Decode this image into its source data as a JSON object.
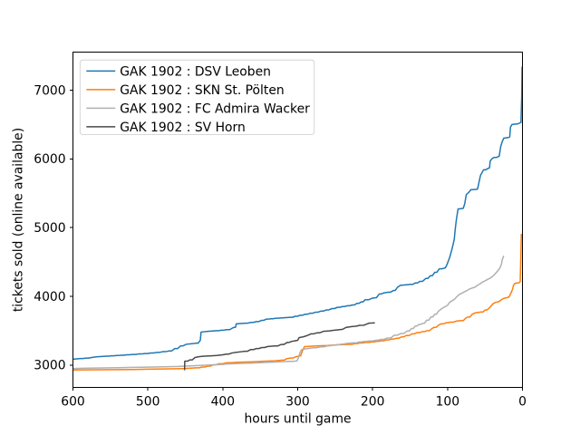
{
  "figure": {
    "background": "#ffffff"
  },
  "chart_data": {
    "type": "line",
    "xlabel": "hours until game",
    "ylabel": "tickets sold (online available)",
    "x_ticks": [
      600,
      500,
      400,
      300,
      200,
      100,
      0
    ],
    "y_ticks": [
      3000,
      4000,
      5000,
      6000,
      7000
    ],
    "xlim": [
      600,
      0
    ],
    "ylim": [
      2675,
      7553
    ],
    "x_axis_inverted": true,
    "grid": false,
    "legend": {
      "position": "upper left",
      "border_color": "#cccccc",
      "background": "#ffffff"
    },
    "axis_color": "#000000",
    "series": [
      {
        "name": "GAK 1902 : DSV Leoben",
        "color": "#1f77b4",
        "x": [
          600,
          590,
          586.6,
          582.5,
          579.1,
          575.0,
          569,
          555,
          552.1,
          548.7,
          545.8,
          542.3,
          539.5,
          536.0,
          532.4,
          528.0,
          524.4,
          520.0,
          516.4,
          512.0,
          508.4,
          504.0,
          500.4,
          496.0,
          492.4,
          488.0,
          484.4,
          480.0,
          476.4,
          472.0,
          468.4,
          464.0,
          460.4,
          456.0,
          452.9,
          449.0,
          440,
          435,
          432.8,
          430.0,
          429,
          420,
          408,
          405.1,
          401.5,
          398.6,
          395.0,
          390.9,
          386.0,
          383,
          382,
          370,
          366.6,
          362.5,
          359.1,
          355.0,
          352.1,
          348.5,
          345.6,
          342.0,
          339.3,
          336.0,
          333.3,
          330.0,
          322,
          310,
          307.0,
          303.3,
          300.3,
          296.7,
          293.7,
          290.0,
          286.9,
          283.0,
          279.9,
          276.0,
          272.9,
          269.0,
          265.7,
          261.7,
          258.4,
          254.3,
          251.0,
          247.0,
          244.0,
          240.3,
          237.3,
          233.7,
          230.7,
          227.0,
          224.3,
          221.0,
          218.3,
          215.0,
          212.8,
          210.0,
          205.5,
          200.0,
          195,
          191,
          188.3,
          185.0,
          180,
          176.4,
          172.0,
          169.8,
          167.0,
          163,
          155,
          149,
          146.3,
          143.0,
          140.3,
          137.0,
          133.4,
          129.0,
          126.3,
          123.0,
          120.3,
          117.0,
          114.3,
          111.0,
          107.4,
          103.0,
          101,
          97,
          94,
          91,
          90,
          88.5,
          88,
          86,
          79,
          77,
          75,
          71,
          69,
          62,
          60,
          56,
          52,
          49.3,
          46.0,
          44,
          43,
          40,
          38,
          34.9,
          31.0,
          29,
          27,
          25,
          19,
          17,
          16,
          14,
          6,
          2,
          1,
          0.5
        ],
        "y": [
          3085,
          3095,
          3095,
          3102,
          3102,
          3110,
          3120,
          3130,
          3130,
          3134,
          3134,
          3139,
          3139,
          3143,
          3143,
          3149,
          3149,
          3155,
          3155,
          3162,
          3162,
          3168,
          3168,
          3176,
          3176,
          3185,
          3185,
          3195,
          3195,
          3205,
          3205,
          3240,
          3240,
          3280,
          3280,
          3302,
          3312,
          3320,
          3320,
          3362,
          3480,
          3490,
          3500,
          3500,
          3508,
          3508,
          3515,
          3515,
          3545,
          3550,
          3600,
          3610,
          3610,
          3621,
          3621,
          3632,
          3632,
          3650,
          3650,
          3668,
          3668,
          3674,
          3674,
          3680,
          3685,
          3695,
          3695,
          3710,
          3710,
          3725,
          3725,
          3740,
          3740,
          3755,
          3755,
          3770,
          3770,
          3785,
          3785,
          3803,
          3803,
          3822,
          3822,
          3840,
          3840,
          3852,
          3852,
          3863,
          3863,
          3875,
          3875,
          3898,
          3898,
          3920,
          3920,
          3950,
          3950,
          3975,
          3980,
          4035,
          4035,
          4050,
          4060,
          4060,
          4085,
          4085,
          4130,
          4160,
          4168,
          4175,
          4175,
          4195,
          4195,
          4218,
          4218,
          4260,
          4260,
          4300,
          4300,
          4350,
          4350,
          4400,
          4400,
          4415,
          4455,
          4570,
          4690,
          4830,
          4950,
          5090,
          5130,
          5270,
          5280,
          5350,
          5480,
          5520,
          5550,
          5555,
          5560,
          5760,
          5840,
          5840,
          5860,
          5870,
          5970,
          6010,
          6020,
          6020,
          6040,
          6180,
          6250,
          6300,
          6310,
          6320,
          6460,
          6500,
          6510,
          6530,
          6900,
          7340
        ]
      },
      {
        "name": "GAK 1902 : SKN St. Pölten",
        "color": "#ff7f0e",
        "x": [
          600,
          580,
          560,
          540,
          520,
          500,
          480,
          460,
          450,
          435,
          431.6,
          427.5,
          424.1,
          420.0,
          416.4,
          412.0,
          408.9,
          405.0,
          400.5,
          395.0,
          380,
          360,
          345,
          330,
          320,
          317.8,
          315.0,
          310,
          306.4,
          302.0,
          298,
          296,
          294,
          291,
          285,
          276,
          260,
          247,
          230,
          227.1,
          223.5,
          220.6,
          217.0,
          213.2,
          208.5,
          204.7,
          200.0,
          197.5,
          194.5,
          192.0,
          189.0,
          185.8,
          182.0,
          178.8,
          175.0,
          171.8,
          168.0,
          165.1,
          161.5,
          158.6,
          155.0,
          151.4,
          147.0,
          144.3,
          141.0,
          137.4,
          133.0,
          130.3,
          127.0,
          124.3,
          121.0,
          118,
          115.3,
          112.0,
          109,
          105.8,
          102.0,
          96,
          92.4,
          88.0,
          81,
          78.8,
          76.0,
          73,
          70.3,
          67.0,
          63,
          58,
          55,
          52.8,
          50.0,
          47.8,
          45.0,
          41,
          39,
          35,
          32,
          28,
          25,
          21,
          18,
          15,
          13,
          12,
          10,
          4,
          3,
          1.5,
          1
        ],
        "y": [
          2928,
          2930,
          2932,
          2934,
          2936,
          2940,
          2943,
          2947,
          2950,
          2960,
          2960,
          2972,
          2972,
          2985,
          2985,
          3005,
          3005,
          3020,
          3020,
          3032,
          3040,
          3048,
          3055,
          3062,
          3072,
          3072,
          3092,
          3102,
          3102,
          3122,
          3132,
          3135,
          3200,
          3268,
          3272,
          3278,
          3285,
          3295,
          3302,
          3302,
          3312,
          3312,
          3322,
          3322,
          3330,
          3330,
          3338,
          3338,
          3345,
          3345,
          3352,
          3352,
          3365,
          3365,
          3378,
          3378,
          3390,
          3390,
          3410,
          3410,
          3430,
          3430,
          3455,
          3455,
          3472,
          3472,
          3488,
          3488,
          3500,
          3500,
          3530,
          3549,
          3549,
          3580,
          3599,
          3599,
          3615,
          3624,
          3624,
          3640,
          3648,
          3648,
          3680,
          3698,
          3698,
          3740,
          3760,
          3768,
          3772,
          3772,
          3800,
          3800,
          3822,
          3870,
          3896,
          3915,
          3921,
          3950,
          3970,
          3980,
          3990,
          4055,
          4110,
          4160,
          4190,
          4200,
          4215,
          4900,
          4908
        ]
      },
      {
        "name": "GAK 1902 : FC Admira Wacker",
        "color": "#b0b0b0",
        "x": [
          600,
          580,
          560,
          540,
          520,
          500,
          480,
          460,
          450,
          430,
          420,
          410,
          400,
          395,
          380,
          360,
          345,
          330,
          315,
          305,
          301,
          299,
          297,
          295,
          293,
          285,
          279,
          274.9,
          270.0,
          265.5,
          260.0,
          257.1,
          253.5,
          250.6,
          247.0,
          244.3,
          241.0,
          238.3,
          235.0,
          225,
          221.4,
          217.0,
          214.3,
          211.0,
          208.3,
          205.0,
          200.5,
          195.0,
          192.3,
          189.0,
          184.9,
          180.0,
          175.9,
          171.0,
          166.9,
          162.0,
          158.4,
          154.0,
          151.3,
          148.0,
          145.8,
          143.0,
          140.8,
          138.0,
          135.8,
          133.0,
          130.8,
          128.0,
          125.3,
          122.0,
          119.8,
          117.0,
          114.8,
          112.0,
          108,
          104,
          100,
          97,
          94,
          91,
          88,
          84,
          80,
          77,
          73,
          70,
          66,
          64,
          60,
          57,
          53,
          50,
          46,
          43,
          40,
          37,
          33,
          30,
          28,
          27,
          26,
          25
        ],
        "y": [
          2950,
          2955,
          2958,
          2962,
          2966,
          2970,
          2975,
          2980,
          2985,
          2995,
          3000,
          3005,
          3010,
          3016,
          3022,
          3030,
          3038,
          3045,
          3052,
          3056,
          3060,
          3105,
          3180,
          3222,
          3232,
          3242,
          3252,
          3252,
          3265,
          3265,
          3280,
          3280,
          3289,
          3289,
          3298,
          3298,
          3306,
          3306,
          3315,
          3325,
          3325,
          3338,
          3338,
          3344,
          3344,
          3350,
          3350,
          3362,
          3362,
          3374,
          3374,
          3394,
          3394,
          3435,
          3435,
          3460,
          3460,
          3495,
          3495,
          3532,
          3532,
          3568,
          3568,
          3592,
          3592,
          3608,
          3608,
          3652,
          3652,
          3700,
          3700,
          3740,
          3740,
          3785,
          3820,
          3845,
          3870,
          3915,
          3935,
          3955,
          3990,
          4030,
          4050,
          4068,
          4090,
          4110,
          4125,
          4130,
          4160,
          4180,
          4210,
          4225,
          4250,
          4265,
          4290,
          4320,
          4370,
          4415,
          4470,
          4530,
          4560,
          4590
        ]
      },
      {
        "name": "GAK 1902 : SV Horn",
        "color": "#4a4a4a",
        "x": [
          451,
          450.8,
          449,
          446.8,
          444.0,
          440.9,
          437.0,
          433,
          427,
          421,
          415,
          408,
          400,
          395,
          391.9,
          388.0,
          383,
          375,
          371,
          367.4,
          363.0,
          359.4,
          355.0,
          351.9,
          348.0,
          344.4,
          340.0,
          331,
          326.9,
          322.0,
          318.4,
          314.0,
          311.3,
          308.0,
          304,
          300,
          298,
          293,
          290,
          286,
          282,
          278.4,
          274.0,
          270.4,
          266.0,
          258,
          251,
          244,
          240,
          236,
          234,
          228,
          223,
          220,
          218,
          212,
          208,
          205,
          200,
          197
        ],
        "y": [
          2925,
          3055,
          3057,
          3057,
          3075,
          3075,
          3110,
          3120,
          3128,
          3132,
          3135,
          3140,
          3150,
          3160,
          3160,
          3175,
          3185,
          3195,
          3200,
          3200,
          3225,
          3225,
          3240,
          3240,
          3255,
          3255,
          3270,
          3278,
          3278,
          3300,
          3300,
          3330,
          3330,
          3345,
          3352,
          3360,
          3400,
          3410,
          3420,
          3435,
          3455,
          3455,
          3470,
          3470,
          3490,
          3498,
          3507,
          3515,
          3520,
          3545,
          3550,
          3560,
          3565,
          3570,
          3578,
          3580,
          3595,
          3610,
          3612,
          3615
        ]
      }
    ]
  }
}
